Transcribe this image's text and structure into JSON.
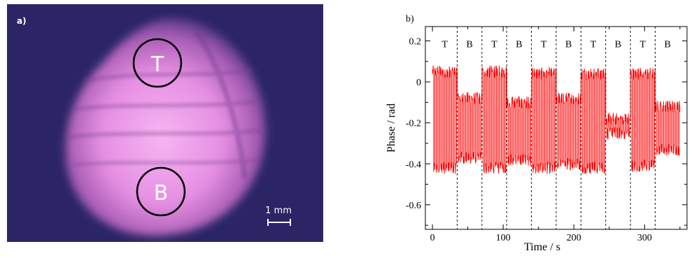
{
  "panel_a": {
    "label": "a)",
    "regions": [
      {
        "label": "T"
      },
      {
        "label": "B"
      }
    ],
    "scale_bar_label": "1 mm",
    "colors": {
      "background": "#2a2466",
      "glow": "#f2a8ef",
      "circle": "#000000"
    }
  },
  "panel_b": {
    "label": "b)",
    "region_labels": [
      "T",
      "B",
      "T",
      "B",
      "T",
      "B",
      "T",
      "B",
      "T",
      "B"
    ]
  },
  "chart_data": {
    "type": "line",
    "title": "",
    "xlabel": "Time / s",
    "ylabel": "Phase / rad",
    "xlim": [
      -10,
      360
    ],
    "ylim": [
      -0.72,
      0.27
    ],
    "xticks": [
      0,
      100,
      200,
      300
    ],
    "yticks": [
      0.2,
      0,
      -0.2,
      -0.4,
      -0.6
    ],
    "ytick_labels": [
      "0.2",
      "0",
      "-0.2",
      "-0.4",
      "-0.6"
    ],
    "segment_boundaries": [
      35,
      70,
      105,
      140,
      175,
      210,
      245,
      280,
      315
    ],
    "series": [
      {
        "color": "#ff0000",
        "segments": [
          {
            "label": "T",
            "x": [
              0,
              35
            ],
            "high": 0.05,
            "low": -0.42,
            "period": 3.4
          },
          {
            "label": "B",
            "x": [
              35,
              70
            ],
            "high": -0.08,
            "low": -0.37,
            "period": 3.4
          },
          {
            "label": "T",
            "x": [
              70,
              105
            ],
            "high": 0.05,
            "low": -0.42,
            "period": 3.4
          },
          {
            "label": "B",
            "x": [
              105,
              140
            ],
            "high": -0.1,
            "low": -0.38,
            "period": 3.4
          },
          {
            "label": "T",
            "x": [
              140,
              175
            ],
            "high": 0.04,
            "low": -0.42,
            "period": 3.4
          },
          {
            "label": "B",
            "x": [
              175,
              210
            ],
            "high": -0.08,
            "low": -0.4,
            "period": 3.4
          },
          {
            "label": "T",
            "x": [
              210,
              245
            ],
            "high": 0.04,
            "low": -0.42,
            "period": 3.4
          },
          {
            "label": "B",
            "x": [
              245,
              280
            ],
            "high": -0.18,
            "low": -0.25,
            "period": 3.4
          },
          {
            "label": "T",
            "x": [
              280,
              315
            ],
            "high": 0.04,
            "low": -0.41,
            "period": 3.4
          },
          {
            "label": "B",
            "x": [
              315,
              350
            ],
            "high": -0.12,
            "low": -0.33,
            "period": 3.4
          }
        ]
      }
    ]
  }
}
